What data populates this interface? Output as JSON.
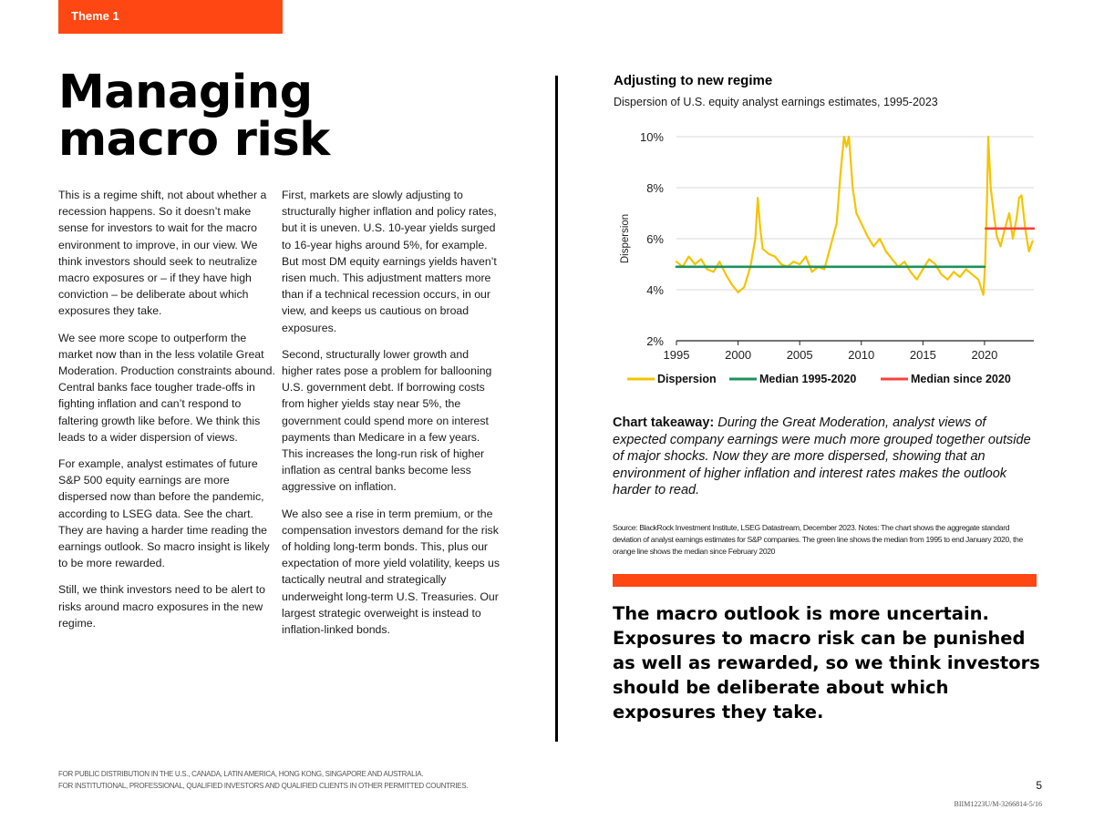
{
  "header": {
    "theme_tag": "Theme 1"
  },
  "title": {
    "line1": "Managing",
    "line2": "macro risk"
  },
  "body": {
    "column1": [
      "This is a regime shift, not about whether a recession happens. So it doesn’t make sense for investors to wait for the macro environment to improve, in our view. We think investors should seek to neutralize macro exposures or – if they have high conviction – be deliberate about which exposures they take.",
      "We see more scope to outperform the market now than in the less volatile Great Moderation. Production constraints abound. Central banks face tougher trade-offs in fighting inflation and can’t respond to faltering growth like before. We think this leads to a wider dispersion of views.",
      "For example, analyst estimates of future S&P 500 equity earnings are more dispersed now than before the pandemic, according to LSEG data. See the chart. They are having a harder time reading the earnings outlook. So macro insight is likely to be more rewarded.",
      "Still, we think investors need to be alert to risks around macro exposures in the new regime."
    ],
    "column2": [
      "First, markets are slowly adjusting to structurally higher inflation and policy rates, but it is uneven. U.S. 10-year yields surged to 16-year highs around 5%, for example. But most DM equity earnings yields haven’t risen much. This adjustment matters more than if a technical recession occurs, in our view, and keeps us cautious on broad exposures.",
      "Second, structurally lower growth and higher rates pose a problem for ballooning U.S. government debt. If borrowing costs from higher yields stay near 5%, the government could spend more on interest payments than Medicare in a few years. This increases the long-run risk of higher inflation as central banks become less aggressive on inflation.",
      "We also see a rise in term premium, or the compensation investors demand for the risk of holding long-term bonds. This, plus our expectation of more yield volatility, keeps us tactically neutral and strategically underweight long-term U.S. Treasuries. Our largest strategic overweight is instead to inflation-linked bonds."
    ]
  },
  "chart_data": {
    "type": "line",
    "title": "Adjusting to new regime",
    "subtitle": "Dispersion of U.S. equity analyst earnings estimates, 1995-2023",
    "xlabel": "",
    "ylabel": "Dispersion",
    "xlim": [
      1995,
      2024
    ],
    "ylim": [
      2,
      10
    ],
    "x_ticks": [
      1995,
      2000,
      2005,
      2010,
      2015,
      2020
    ],
    "y_ticks": [
      2,
      4,
      6,
      8,
      10
    ],
    "y_tick_labels": [
      "2%",
      "4%",
      "6%",
      "8%",
      "10%"
    ],
    "grid": "horizontal",
    "legend": [
      "Dispersion",
      "Median 1995-2020",
      "Median since 2020"
    ],
    "legend_position": "bottom",
    "series": [
      {
        "name": "Dispersion",
        "color": "#f5c400",
        "x": [
          1995,
          1995.5,
          1996,
          1996.5,
          1997,
          1997.5,
          1998,
          1998.5,
          1999,
          1999.5,
          2000,
          2000.5,
          2001,
          2001.4,
          2001.6,
          2001.8,
          2002,
          2002.5,
          2003,
          2003.5,
          2004,
          2004.5,
          2005,
          2005.5,
          2006,
          2006.5,
          2007,
          2007.5,
          2008,
          2008.3,
          2008.6,
          2008.8,
          2009,
          2009.3,
          2009.6,
          2010,
          2010.5,
          2011,
          2011.5,
          2012,
          2012.5,
          2013,
          2013.5,
          2014,
          2014.5,
          2015,
          2015.5,
          2016,
          2016.5,
          2017,
          2017.5,
          2018,
          2018.5,
          2019,
          2019.5,
          2019.9,
          2020.05,
          2020.2,
          2020.3,
          2020.5,
          2020.8,
          2021,
          2021.3,
          2021.6,
          2022,
          2022.3,
          2022.6,
          2022.8,
          2023,
          2023.3,
          2023.6,
          2023.9
        ],
        "y": [
          5.1,
          4.9,
          5.3,
          5.0,
          5.2,
          4.8,
          4.7,
          5.1,
          4.6,
          4.2,
          3.9,
          4.1,
          4.9,
          6.0,
          7.6,
          6.4,
          5.6,
          5.4,
          5.3,
          5.0,
          4.9,
          5.1,
          5.0,
          5.3,
          4.7,
          4.9,
          4.8,
          5.7,
          6.6,
          8.5,
          10.0,
          9.6,
          10.0,
          8.0,
          7.0,
          6.6,
          6.1,
          5.7,
          6.0,
          5.5,
          5.2,
          4.9,
          5.1,
          4.7,
          4.4,
          4.8,
          5.2,
          5.0,
          4.6,
          4.4,
          4.7,
          4.5,
          4.8,
          4.6,
          4.4,
          3.8,
          5.0,
          7.5,
          10.0,
          8.0,
          6.8,
          6.1,
          5.7,
          6.3,
          7.0,
          6.0,
          6.8,
          7.6,
          7.7,
          6.4,
          5.5,
          5.9
        ]
      },
      {
        "name": "Median 1995-2020",
        "color": "#1e8f5e",
        "x": [
          1995,
          2020
        ],
        "y": [
          4.9,
          4.9
        ]
      },
      {
        "name": "Median since 2020",
        "color": "#f5423c",
        "x": [
          2020.1,
          2024
        ],
        "y": [
          6.4,
          6.4
        ]
      }
    ]
  },
  "chart_takeaway": {
    "label": "Chart takeaway:",
    "text": " During the Great Moderation, analyst views of expected company earnings were much more grouped together outside of major shocks. Now they are more dispersed, showing that an environment of higher inflation and interest rates makes the outlook harder to read."
  },
  "source_note": "Source: BlackRock Investment Institute, LSEG Datastream, December 2023. Notes: The chart shows the aggregate standard deviation of analyst earnings estimates for S&P companies. The green line shows the median from 1995 to end January 2020, the orange line shows the median since February 2020",
  "pull_quote": "The macro outlook is more uncertain. Exposures to macro risk can be punished as well as rewarded, so we think investors should be deliberate about which exposures they take.",
  "footer": {
    "line1": "FOR PUBLIC DISTRIBUTION IN THE U.S., CANADA, LATIN AMERICA, HONG KONG, SINGAPORE AND AUSTRALIA.",
    "line2": "FOR INSTITUTIONAL, PROFESSIONAL, QUALIFIED INVESTORS AND QUALIFIED CLIENTS IN OTHER PERMITTED COUNTRIES.",
    "page_number": "5",
    "doc_code": "BIIM1223U/M-3266814-5/16"
  },
  "colors": {
    "accent": "#ff4713",
    "text": "#111111"
  }
}
